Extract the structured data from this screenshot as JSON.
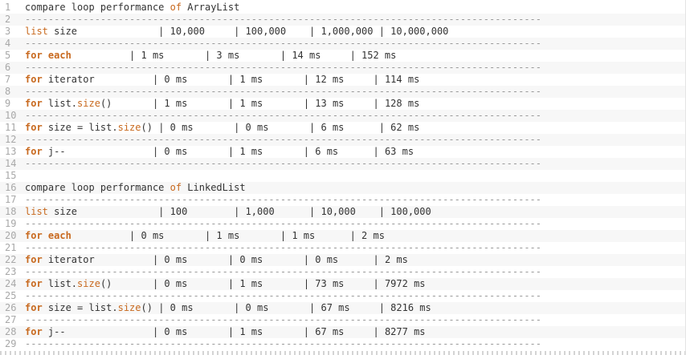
{
  "lines": [
    {
      "n": "1",
      "segs": [
        {
          "t": "compare loop performance ",
          "c": ""
        },
        {
          "t": "of",
          "c": "fn"
        },
        {
          "t": " ArrayList",
          "c": ""
        }
      ]
    },
    {
      "n": "2",
      "segs": [
        {
          "t": "-----------------------------------------------------------------------------------------",
          "c": "sep"
        }
      ]
    },
    {
      "n": "3",
      "segs": [
        {
          "t": "list",
          "c": "fn"
        },
        {
          "t": " size              | 10,000     | 100,000    | 1,000,000 | 10,000,000",
          "c": ""
        }
      ]
    },
    {
      "n": "4",
      "segs": [
        {
          "t": "-----------------------------------------------------------------------------------------",
          "c": "sep"
        }
      ]
    },
    {
      "n": "5",
      "segs": [
        {
          "t": "for each",
          "c": "kw"
        },
        {
          "t": "          | 1 ms       | 3 ms       | 14 ms     | 152 ms",
          "c": ""
        }
      ]
    },
    {
      "n": "6",
      "segs": [
        {
          "t": "-----------------------------------------------------------------------------------------",
          "c": "sep"
        }
      ]
    },
    {
      "n": "7",
      "segs": [
        {
          "t": "for",
          "c": "kw"
        },
        {
          "t": " iterator          | 0 ms       | 1 ms       | 12 ms     | 114 ms",
          "c": ""
        }
      ]
    },
    {
      "n": "8",
      "segs": [
        {
          "t": "-----------------------------------------------------------------------------------------",
          "c": "sep"
        }
      ]
    },
    {
      "n": "9",
      "segs": [
        {
          "t": "for",
          "c": "kw"
        },
        {
          "t": " list.",
          "c": ""
        },
        {
          "t": "size",
          "c": "fn"
        },
        {
          "t": "()       | 1 ms       | 1 ms       | 13 ms     | 128 ms",
          "c": ""
        }
      ]
    },
    {
      "n": "10",
      "segs": [
        {
          "t": "-----------------------------------------------------------------------------------------",
          "c": "sep"
        }
      ]
    },
    {
      "n": "11",
      "segs": [
        {
          "t": "for",
          "c": "kw"
        },
        {
          "t": " size = list.",
          "c": ""
        },
        {
          "t": "size",
          "c": "fn"
        },
        {
          "t": "() | 0 ms       | 0 ms       | 6 ms      | 62 ms",
          "c": ""
        }
      ]
    },
    {
      "n": "12",
      "segs": [
        {
          "t": "-----------------------------------------------------------------------------------------",
          "c": "sep"
        }
      ]
    },
    {
      "n": "13",
      "segs": [
        {
          "t": "for",
          "c": "kw"
        },
        {
          "t": " j--               | 0 ms       | 1 ms       | 6 ms      | 63 ms",
          "c": ""
        }
      ]
    },
    {
      "n": "14",
      "segs": [
        {
          "t": "-----------------------------------------------------------------------------------------",
          "c": "sep"
        }
      ]
    },
    {
      "n": "15",
      "segs": [
        {
          "t": "",
          "c": ""
        }
      ]
    },
    {
      "n": "16",
      "segs": [
        {
          "t": "compare loop performance ",
          "c": ""
        },
        {
          "t": "of",
          "c": "fn"
        },
        {
          "t": " LinkedList",
          "c": ""
        }
      ]
    },
    {
      "n": "17",
      "segs": [
        {
          "t": "-----------------------------------------------------------------------------------------",
          "c": "sep"
        }
      ]
    },
    {
      "n": "18",
      "segs": [
        {
          "t": "list",
          "c": "fn"
        },
        {
          "t": " size              | 100        | 1,000      | 10,000    | 100,000",
          "c": ""
        }
      ]
    },
    {
      "n": "19",
      "segs": [
        {
          "t": "-----------------------------------------------------------------------------------------",
          "c": "sep"
        }
      ]
    },
    {
      "n": "20",
      "segs": [
        {
          "t": "for each",
          "c": "kw"
        },
        {
          "t": "          | 0 ms       | 1 ms       | 1 ms      | 2 ms",
          "c": ""
        }
      ]
    },
    {
      "n": "21",
      "segs": [
        {
          "t": "-----------------------------------------------------------------------------------------",
          "c": "sep"
        }
      ]
    },
    {
      "n": "22",
      "segs": [
        {
          "t": "for",
          "c": "kw"
        },
        {
          "t": " iterator          | 0 ms       | 0 ms       | 0 ms      | 2 ms",
          "c": ""
        }
      ]
    },
    {
      "n": "23",
      "segs": [
        {
          "t": "-----------------------------------------------------------------------------------------",
          "c": "sep"
        }
      ]
    },
    {
      "n": "24",
      "segs": [
        {
          "t": "for",
          "c": "kw"
        },
        {
          "t": " list.",
          "c": ""
        },
        {
          "t": "size",
          "c": "fn"
        },
        {
          "t": "()       | 0 ms       | 1 ms       | 73 ms     | 7972 ms",
          "c": ""
        }
      ]
    },
    {
      "n": "25",
      "segs": [
        {
          "t": "-----------------------------------------------------------------------------------------",
          "c": "sep"
        }
      ]
    },
    {
      "n": "26",
      "segs": [
        {
          "t": "for",
          "c": "kw"
        },
        {
          "t": " size = list.",
          "c": ""
        },
        {
          "t": "size",
          "c": "fn"
        },
        {
          "t": "() | 0 ms       | 0 ms       | 67 ms     | 8216 ms",
          "c": ""
        }
      ]
    },
    {
      "n": "27",
      "segs": [
        {
          "t": "-----------------------------------------------------------------------------------------",
          "c": "sep"
        }
      ]
    },
    {
      "n": "28",
      "segs": [
        {
          "t": "for",
          "c": "kw"
        },
        {
          "t": " j--               | 0 ms       | 1 ms       | 67 ms     | 8277 ms",
          "c": ""
        }
      ]
    },
    {
      "n": "29",
      "segs": [
        {
          "t": "-----------------------------------------------------------------------------------------",
          "c": "sep"
        }
      ]
    }
  ]
}
